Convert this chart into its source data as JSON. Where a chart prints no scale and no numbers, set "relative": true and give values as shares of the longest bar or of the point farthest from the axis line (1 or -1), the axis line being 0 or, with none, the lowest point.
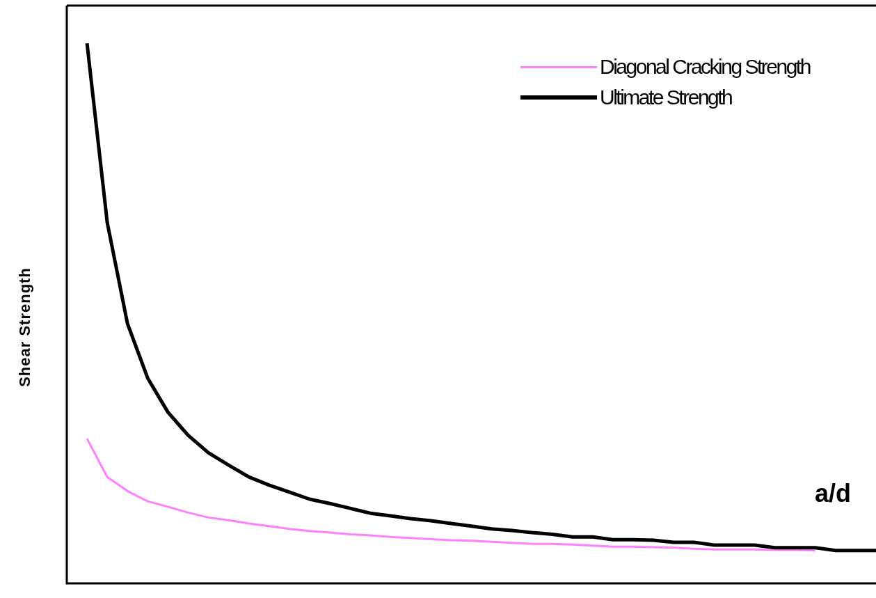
{
  "chart_data": {
    "type": "line",
    "relative": true,
    "xlabel": "a/d",
    "ylabel": "Shear Strength",
    "legend": "top right",
    "marker": "none",
    "categories": [
      null,
      null,
      null,
      null,
      null,
      null,
      null,
      null,
      null,
      null,
      null,
      null,
      null,
      null,
      null,
      null,
      null,
      null,
      null,
      null,
      null,
      null,
      null,
      null,
      null,
      null,
      null,
      null,
      null,
      null,
      null,
      null,
      null,
      null,
      null,
      null,
      null,
      null,
      null,
      null,
      null
    ],
    "series": [
      {
        "name": "Diagonal Cracking Strength",
        "color": "#ff80ff",
        "values": [
          null,
          0.268,
          0.197,
          0.171,
          0.152,
          0.142,
          0.131,
          0.122,
          0.117,
          0.111,
          0.106,
          0.101,
          0.097,
          0.094,
          0.091,
          0.089,
          0.086,
          0.084,
          0.082,
          0.08,
          0.079,
          0.077,
          0.075,
          0.073,
          0.073,
          0.072,
          0.07,
          0.068,
          0.068,
          0.067,
          0.066,
          0.064,
          0.063,
          0.063,
          0.063,
          0.062,
          0.062,
          0.061,
          null,
          null,
          null
        ]
      },
      {
        "name": "Ultimate Strength",
        "color": "#000000",
        "values": [
          null,
          1.0,
          0.668,
          0.481,
          0.38,
          0.317,
          0.274,
          0.242,
          0.219,
          0.197,
          0.182,
          0.169,
          0.156,
          0.148,
          0.139,
          0.13,
          0.125,
          0.12,
          0.116,
          0.111,
          0.106,
          0.101,
          0.098,
          0.094,
          0.091,
          0.086,
          0.086,
          0.081,
          0.081,
          0.08,
          0.076,
          0.076,
          0.071,
          0.071,
          0.071,
          0.066,
          0.066,
          0.066,
          0.061,
          0.061,
          0.061
        ]
      }
    ]
  }
}
